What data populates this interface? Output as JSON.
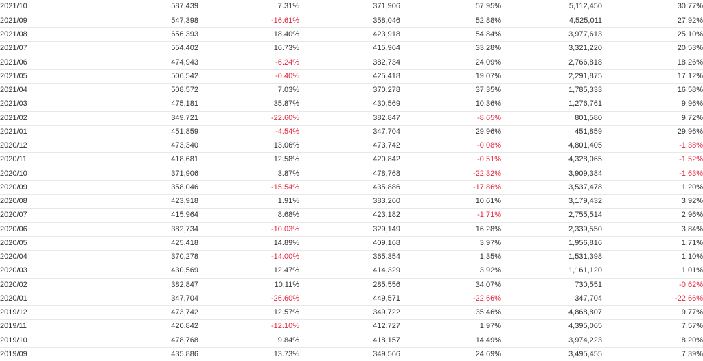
{
  "table": {
    "rows": [
      [
        "2021/10",
        "587,439",
        "7.31%",
        "371,906",
        "57.95%",
        "5,112,450",
        "30.77%"
      ],
      [
        "2021/09",
        "547,398",
        "-16.61%",
        "358,046",
        "52.88%",
        "4,525,011",
        "27.92%"
      ],
      [
        "2021/08",
        "656,393",
        "18.40%",
        "423,918",
        "54.84%",
        "3,977,613",
        "25.10%"
      ],
      [
        "2021/07",
        "554,402",
        "16.73%",
        "415,964",
        "33.28%",
        "3,321,220",
        "20.53%"
      ],
      [
        "2021/06",
        "474,943",
        "-6.24%",
        "382,734",
        "24.09%",
        "2,766,818",
        "18.26%"
      ],
      [
        "2021/05",
        "506,542",
        "-0.40%",
        "425,418",
        "19.07%",
        "2,291,875",
        "17.12%"
      ],
      [
        "2021/04",
        "508,572",
        "7.03%",
        "370,278",
        "37.35%",
        "1,785,333",
        "16.58%"
      ],
      [
        "2021/03",
        "475,181",
        "35.87%",
        "430,569",
        "10.36%",
        "1,276,761",
        "9.96%"
      ],
      [
        "2021/02",
        "349,721",
        "-22.60%",
        "382,847",
        "-8.65%",
        "801,580",
        "9.72%"
      ],
      [
        "2021/01",
        "451,859",
        "-4.54%",
        "347,704",
        "29.96%",
        "451,859",
        "29.96%"
      ],
      [
        "2020/12",
        "473,340",
        "13.06%",
        "473,742",
        "-0.08%",
        "4,801,405",
        "-1.38%"
      ],
      [
        "2020/11",
        "418,681",
        "12.58%",
        "420,842",
        "-0.51%",
        "4,328,065",
        "-1.52%"
      ],
      [
        "2020/10",
        "371,906",
        "3.87%",
        "478,768",
        "-22.32%",
        "3,909,384",
        "-1.63%"
      ],
      [
        "2020/09",
        "358,046",
        "-15.54%",
        "435,886",
        "-17.86%",
        "3,537,478",
        "1.20%"
      ],
      [
        "2020/08",
        "423,918",
        "1.91%",
        "383,260",
        "10.61%",
        "3,179,432",
        "3.92%"
      ],
      [
        "2020/07",
        "415,964",
        "8.68%",
        "423,182",
        "-1.71%",
        "2,755,514",
        "2.96%"
      ],
      [
        "2020/06",
        "382,734",
        "-10.03%",
        "329,149",
        "16.28%",
        "2,339,550",
        "3.84%"
      ],
      [
        "2020/05",
        "425,418",
        "14.89%",
        "409,168",
        "3.97%",
        "1,956,816",
        "1.71%"
      ],
      [
        "2020/04",
        "370,278",
        "-14.00%",
        "365,354",
        "1.35%",
        "1,531,398",
        "1.10%"
      ],
      [
        "2020/03",
        "430,569",
        "12.47%",
        "414,329",
        "3.92%",
        "1,161,120",
        "1.01%"
      ],
      [
        "2020/02",
        "382,847",
        "10.11%",
        "285,556",
        "34.07%",
        "730,551",
        "-0.62%"
      ],
      [
        "2020/01",
        "347,704",
        "-26.60%",
        "449,571",
        "-22.66%",
        "347,704",
        "-22.66%"
      ],
      [
        "2019/12",
        "473,742",
        "12.57%",
        "349,722",
        "35.46%",
        "4,868,807",
        "9.77%"
      ],
      [
        "2019/11",
        "420,842",
        "-12.10%",
        "412,727",
        "1.97%",
        "4,395,065",
        "7.57%"
      ],
      [
        "2019/10",
        "478,768",
        "9.84%",
        "418,157",
        "14.49%",
        "3,974,223",
        "8.20%"
      ],
      [
        "2019/09",
        "435,886",
        "13.73%",
        "349,566",
        "24.69%",
        "3,495,455",
        "7.39%"
      ]
    ]
  },
  "colors": {
    "text": "#333333",
    "negative": "#e8243c",
    "border": "#e8e8e8",
    "background": "#ffffff"
  }
}
